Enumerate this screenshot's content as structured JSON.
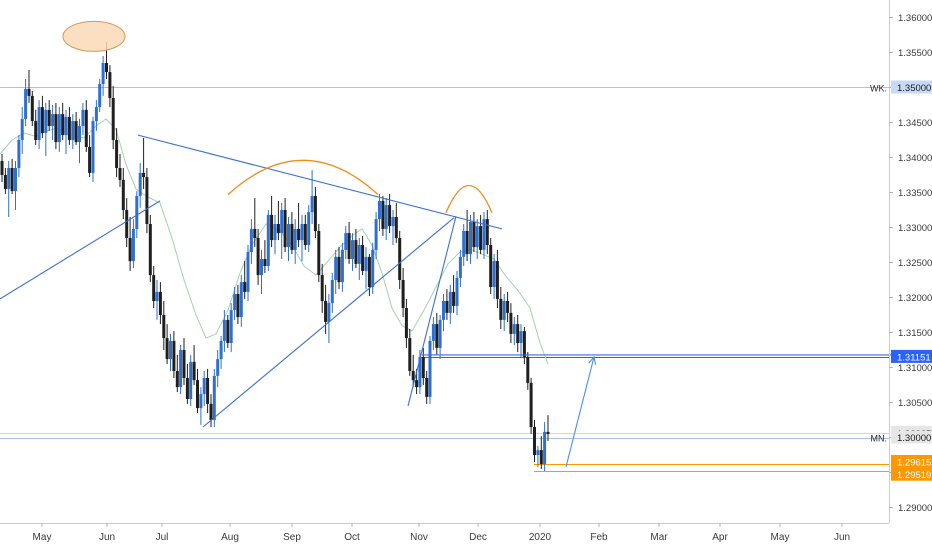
{
  "chart_data": {
    "type": "candlestick",
    "title": "",
    "xlabel": "",
    "ylabel": "",
    "ylim": [
      1.2875,
      1.3625
    ],
    "grid": false,
    "x_tick_labels": [
      "May",
      "Jun",
      "Jul",
      "Aug",
      "Sep",
      "Oct",
      "Nov",
      "Dec",
      "2020",
      "Feb",
      "Mar",
      "Apr",
      "May",
      "Jun"
    ],
    "y_tick_labels": [
      "1.36000",
      "1.35500",
      "1.35000",
      "1.34500",
      "1.34000",
      "1.33500",
      "1.33000",
      "1.32500",
      "1.32000",
      "1.31500",
      "1.31000",
      "1.30500",
      "1.30000",
      "1.29500",
      "1.29000"
    ],
    "price_badges": [
      {
        "label": "1.35000",
        "value": 1.35,
        "color": "#c6daf6",
        "text_color": "#1a1a1a"
      },
      {
        "label": "1.31151",
        "value": 1.31151,
        "color": "#2962ff",
        "text_color": "#ffffff"
      },
      {
        "label": "1.30065",
        "value": 1.30065,
        "color": "#e6e6e6",
        "text_color": "#1a1a1a"
      },
      {
        "label": "1.30000",
        "value": 1.3,
        "color": "#e6e6e6",
        "text_color": "#1a1a1a"
      },
      {
        "label": "1.29615",
        "value": 1.29615,
        "color": "#ff9800",
        "text_color": "#ffffff"
      },
      {
        "label": "1.29519",
        "value": 1.29519,
        "color": "#ff9800",
        "text_color": "#ffffff"
      }
    ],
    "annotations": [
      {
        "text": "WK.",
        "value": 1.35
      },
      {
        "text": "MN.",
        "value": 1.3
      }
    ],
    "horizontal_levels": [
      {
        "value": 1.35,
        "color": "#a9c4eb"
      },
      {
        "value": 1.31151,
        "color": "#2f6bd6"
      },
      {
        "value": 1.30065,
        "color": "#c8d8ec"
      },
      {
        "value": 1.3,
        "color": "#a9c4eb"
      },
      {
        "value": 1.29615,
        "color": "#ff9800"
      },
      {
        "value": 1.29519,
        "color": "#ff9800"
      }
    ],
    "moving_average": [
      [
        0,
        1.3405
      ],
      [
        12,
        1.3425
      ],
      [
        24,
        1.3435
      ],
      [
        36,
        1.343
      ],
      [
        46,
        1.3438
      ],
      [
        58,
        1.3442
      ],
      [
        70,
        1.3432
      ],
      [
        84,
        1.3428
      ],
      [
        96,
        1.3445
      ],
      [
        106,
        1.3455
      ],
      [
        116,
        1.344
      ],
      [
        126,
        1.339
      ],
      [
        136,
        1.3355
      ],
      [
        146,
        1.3345
      ],
      [
        160,
        1.3335
      ],
      [
        172,
        1.3285
      ],
      [
        184,
        1.3225
      ],
      [
        196,
        1.3175
      ],
      [
        206,
        1.3142
      ],
      [
        216,
        1.3148
      ],
      [
        228,
        1.3182
      ],
      [
        240,
        1.3235
      ],
      [
        252,
        1.3275
      ],
      [
        266,
        1.3305
      ],
      [
        280,
        1.3295
      ],
      [
        292,
        1.3275
      ],
      [
        304,
        1.3245
      ],
      [
        316,
        1.3232
      ],
      [
        328,
        1.3252
      ],
      [
        340,
        1.3272
      ],
      [
        352,
        1.3288
      ],
      [
        362,
        1.3298
      ],
      [
        372,
        1.3275
      ],
      [
        382,
        1.3235
      ],
      [
        392,
        1.3185
      ],
      [
        402,
        1.316
      ],
      [
        412,
        1.3152
      ],
      [
        424,
        1.3182
      ],
      [
        436,
        1.3215
      ],
      [
        448,
        1.3248
      ],
      [
        460,
        1.3265
      ],
      [
        472,
        1.3268
      ],
      [
        482,
        1.3262
      ],
      [
        494,
        1.3255
      ],
      [
        506,
        1.323
      ],
      [
        518,
        1.321
      ],
      [
        530,
        1.3185
      ],
      [
        540,
        1.3135
      ],
      [
        548,
        1.3105
      ]
    ],
    "trend_lines": [
      {
        "x1": 138,
        "y1": 1.3432,
        "x2": 502,
        "y2": 1.3298,
        "color": "#3c6fd8"
      },
      {
        "x1": 0,
        "y1": 1.3198,
        "x2": 160,
        "y2": 1.3338,
        "color": "#3c6fd8"
      },
      {
        "x1": 203,
        "y1": 1.3015,
        "x2": 454,
        "y2": 1.3314,
        "color": "#3c6fd8"
      },
      {
        "x1": 408,
        "y1": 1.3045,
        "x2": 456,
        "y2": 1.3316,
        "color": "#3c6fd8"
      },
      {
        "x1": 422,
        "y1": 1.3118,
        "x2": 932,
        "y2": 1.3118,
        "color": "#3c6fd8"
      }
    ],
    "arrow": {
      "x1": 566,
      "y1": 1.2958,
      "x2": 594,
      "y2": 1.3115,
      "color": "#4a90e2"
    },
    "arcs": [
      {
        "x1": 228,
        "x2": 378,
        "y_base": 1.3347,
        "y_peak": 1.3396,
        "color": "#f08c1a"
      },
      {
        "x1": 446,
        "x2": 492,
        "y_base": 1.3321,
        "y_peak": 1.336,
        "color": "#f08c1a"
      }
    ],
    "ellipse": {
      "cx": 94,
      "cy": 1.3573,
      "rx": 31,
      "ry": 15,
      "fill": "#fad9b6",
      "stroke": "#d19a5a"
    },
    "bars": [
      [
        1.3395,
        1.3405,
        1.3365,
        1.3375
      ],
      [
        1.3375,
        1.3385,
        1.3348,
        1.3355
      ],
      [
        1.3355,
        1.3395,
        1.3315,
        1.3385
      ],
      [
        1.3385,
        1.3398,
        1.3348,
        1.3352
      ],
      [
        1.3352,
        1.3395,
        1.3325,
        1.3385
      ],
      [
        1.3385,
        1.3432,
        1.3372,
        1.3425
      ],
      [
        1.3425,
        1.3472,
        1.3405,
        1.3455
      ],
      [
        1.3455,
        1.3512,
        1.3445,
        1.3498
      ],
      [
        1.3498,
        1.3525,
        1.3478,
        1.3488
      ],
      [
        1.3488,
        1.3495,
        1.3445,
        1.3452
      ],
      [
        1.3452,
        1.3468,
        1.3418,
        1.3425
      ],
      [
        1.3425,
        1.3482,
        1.3412,
        1.3472
      ],
      [
        1.3472,
        1.3488,
        1.3428,
        1.3435
      ],
      [
        1.3435,
        1.3478,
        1.3402,
        1.3468
      ],
      [
        1.3468,
        1.3482,
        1.3438,
        1.3445
      ],
      [
        1.3445,
        1.3475,
        1.3425,
        1.3462
      ],
      [
        1.3462,
        1.3478,
        1.3412,
        1.3422
      ],
      [
        1.3422,
        1.3472,
        1.3408,
        1.3462
      ],
      [
        1.3462,
        1.3478,
        1.3425,
        1.3432
      ],
      [
        1.3432,
        1.3468,
        1.3405,
        1.3458
      ],
      [
        1.3458,
        1.3472,
        1.3418,
        1.3425
      ],
      [
        1.3425,
        1.3462,
        1.3412,
        1.3452
      ],
      [
        1.3452,
        1.3465,
        1.3418,
        1.3422
      ],
      [
        1.3422,
        1.3455,
        1.3392,
        1.3445
      ],
      [
        1.3445,
        1.3478,
        1.3432,
        1.3468
      ],
      [
        1.3468,
        1.3482,
        1.3408,
        1.3415
      ],
      [
        1.3415,
        1.3432,
        1.3372,
        1.3378
      ],
      [
        1.3378,
        1.3458,
        1.3365,
        1.3452
      ],
      [
        1.3452,
        1.3482,
        1.3438,
        1.3472
      ],
      [
        1.3472,
        1.3512,
        1.3465,
        1.3505
      ],
      [
        1.3505,
        1.3545,
        1.3488,
        1.3535
      ],
      [
        1.3535,
        1.3565,
        1.3512,
        1.3522
      ],
      [
        1.3522,
        1.3532,
        1.3472,
        1.3485
      ],
      [
        1.3485,
        1.3502,
        1.3412,
        1.3425
      ],
      [
        1.3425,
        1.3442,
        1.3372,
        1.3385
      ],
      [
        1.3385,
        1.3405,
        1.3358,
        1.3368
      ],
      [
        1.3368,
        1.3385,
        1.3312,
        1.3325
      ],
      [
        1.3325,
        1.3342,
        1.3272,
        1.3285
      ],
      [
        1.3285,
        1.3315,
        1.3238,
        1.3252
      ],
      [
        1.3252,
        1.3312,
        1.3242,
        1.3298
      ],
      [
        1.3298,
        1.3352,
        1.3285,
        1.3345
      ],
      [
        1.3345,
        1.3392,
        1.3328,
        1.3378
      ],
      [
        1.3378,
        1.3428,
        1.3355,
        1.3372
      ],
      [
        1.3372,
        1.3385,
        1.3292,
        1.3305
      ],
      [
        1.3305,
        1.3318,
        1.3222,
        1.3232
      ],
      [
        1.3232,
        1.3245,
        1.3185,
        1.3195
      ],
      [
        1.3195,
        1.3225,
        1.3168,
        1.3208
      ],
      [
        1.3208,
        1.3222,
        1.3162,
        1.3175
      ],
      [
        1.3175,
        1.3195,
        1.3125,
        1.3142
      ],
      [
        1.3142,
        1.3162,
        1.3105,
        1.3112
      ],
      [
        1.3112,
        1.3148,
        1.3095,
        1.3138
      ],
      [
        1.3138,
        1.3152,
        1.3085,
        1.3095
      ],
      [
        1.3095,
        1.3118,
        1.3065,
        1.3072
      ],
      [
        1.3072,
        1.3132,
        1.3062,
        1.3125
      ],
      [
        1.3125,
        1.3142,
        1.3075,
        1.3085
      ],
      [
        1.3085,
        1.3105,
        1.3048,
        1.3055
      ],
      [
        1.3055,
        1.3118,
        1.3045,
        1.3108
      ],
      [
        1.3108,
        1.3132,
        1.3075,
        1.3082
      ],
      [
        1.3082,
        1.3098,
        1.3035,
        1.3042
      ],
      [
        1.3042,
        1.3072,
        1.3018,
        1.3062
      ],
      [
        1.3062,
        1.3095,
        1.3045,
        1.3085
      ],
      [
        1.3085,
        1.3098,
        1.3035,
        1.3048
      ],
      [
        1.3048,
        1.3062,
        1.3015,
        1.3025
      ],
      [
        1.3025,
        1.3098,
        1.3015,
        1.3088
      ],
      [
        1.3088,
        1.3125,
        1.3072,
        1.3112
      ],
      [
        1.3112,
        1.3145,
        1.3098,
        1.3138
      ],
      [
        1.3138,
        1.3182,
        1.3122,
        1.3168
      ],
      [
        1.3168,
        1.3175,
        1.3128,
        1.3135
      ],
      [
        1.3135,
        1.3192,
        1.3122,
        1.3182
      ],
      [
        1.3182,
        1.3215,
        1.3168,
        1.3205
      ],
      [
        1.3205,
        1.3218,
        1.3162,
        1.3172
      ],
      [
        1.3172,
        1.3232,
        1.3158,
        1.3222
      ],
      [
        1.3222,
        1.3252,
        1.3198,
        1.3208
      ],
      [
        1.3208,
        1.3275,
        1.3195,
        1.3265
      ],
      [
        1.3265,
        1.3312,
        1.3248,
        1.3298
      ],
      [
        1.3298,
        1.3342,
        1.3272,
        1.3285
      ],
      [
        1.3285,
        1.3298,
        1.3218,
        1.3232
      ],
      [
        1.3232,
        1.3268,
        1.3205,
        1.3255
      ],
      [
        1.3255,
        1.3282,
        1.3235,
        1.3245
      ],
      [
        1.3245,
        1.3325,
        1.3238,
        1.3318
      ],
      [
        1.3318,
        1.3345,
        1.3272,
        1.3282
      ],
      [
        1.3282,
        1.3318,
        1.3262,
        1.3305
      ],
      [
        1.3305,
        1.3338,
        1.3282,
        1.3292
      ],
      [
        1.3292,
        1.3335,
        1.3255,
        1.3325
      ],
      [
        1.3325,
        1.3342,
        1.3265,
        1.3272
      ],
      [
        1.3272,
        1.3315,
        1.3252,
        1.3305
      ],
      [
        1.3305,
        1.3322,
        1.3262,
        1.3268
      ],
      [
        1.3268,
        1.3312,
        1.3248,
        1.3298
      ],
      [
        1.3298,
        1.3335,
        1.3272,
        1.3282
      ],
      [
        1.3282,
        1.3318,
        1.3252,
        1.3305
      ],
      [
        1.3305,
        1.3318,
        1.3268,
        1.3275
      ],
      [
        1.3275,
        1.3332,
        1.3265,
        1.3322
      ],
      [
        1.3322,
        1.3382,
        1.3305,
        1.3345
      ],
      [
        1.3345,
        1.3358,
        1.3285,
        1.3295
      ],
      [
        1.3295,
        1.3305,
        1.3222,
        1.3232
      ],
      [
        1.3232,
        1.3248,
        1.3178,
        1.3195
      ],
      [
        1.3195,
        1.3218,
        1.3148,
        1.3165
      ],
      [
        1.3165,
        1.3205,
        1.3135,
        1.3192
      ],
      [
        1.3192,
        1.3235,
        1.3178,
        1.3225
      ],
      [
        1.3225,
        1.3268,
        1.3205,
        1.3258
      ],
      [
        1.3258,
        1.3272,
        1.3212,
        1.3222
      ],
      [
        1.3222,
        1.3278,
        1.3208,
        1.3268
      ],
      [
        1.3268,
        1.3302,
        1.3255,
        1.3292
      ],
      [
        1.3292,
        1.3308,
        1.3248,
        1.3255
      ],
      [
        1.3255,
        1.3292,
        1.3238,
        1.3282
      ],
      [
        1.3282,
        1.3298,
        1.3242,
        1.3248
      ],
      [
        1.3248,
        1.3285,
        1.3225,
        1.3275
      ],
      [
        1.3275,
        1.3288,
        1.3232,
        1.3238
      ],
      [
        1.3238,
        1.3272,
        1.3212,
        1.3258
      ],
      [
        1.3258,
        1.3262,
        1.3202,
        1.3215
      ],
      [
        1.3215,
        1.3278,
        1.3205,
        1.3268
      ],
      [
        1.3268,
        1.3322,
        1.3255,
        1.3312
      ],
      [
        1.3312,
        1.3348,
        1.3295,
        1.3338
      ],
      [
        1.3338,
        1.3345,
        1.3288,
        1.3298
      ],
      [
        1.3298,
        1.3342,
        1.3282,
        1.3332
      ],
      [
        1.3332,
        1.3348,
        1.3292,
        1.3302
      ],
      [
        1.3302,
        1.3325,
        1.3275,
        1.3315
      ],
      [
        1.3315,
        1.3335,
        1.3278,
        1.3285
      ],
      [
        1.3285,
        1.3295,
        1.3212,
        1.3225
      ],
      [
        1.3225,
        1.3242,
        1.3172,
        1.3185
      ],
      [
        1.3185,
        1.3198,
        1.3128,
        1.3142
      ],
      [
        1.3142,
        1.3155,
        1.3088,
        1.3095
      ],
      [
        1.3095,
        1.3118,
        1.3072,
        1.3082
      ],
      [
        1.3082,
        1.3098,
        1.3062,
        1.3072
      ],
      [
        1.3072,
        1.3125,
        1.3062,
        1.3115
      ],
      [
        1.3115,
        1.3128,
        1.3075,
        1.3085
      ],
      [
        1.3085,
        1.3095,
        1.3048,
        1.3058
      ],
      [
        1.3058,
        1.3145,
        1.3048,
        1.3138
      ],
      [
        1.3138,
        1.3172,
        1.3125,
        1.3162
      ],
      [
        1.3162,
        1.3178,
        1.3118,
        1.3128
      ],
      [
        1.3128,
        1.3175,
        1.3112,
        1.3168
      ],
      [
        1.3168,
        1.3205,
        1.3152,
        1.3195
      ],
      [
        1.3195,
        1.3212,
        1.3168,
        1.3178
      ],
      [
        1.3178,
        1.3218,
        1.3162,
        1.3208
      ],
      [
        1.3208,
        1.3232,
        1.3178,
        1.3188
      ],
      [
        1.3188,
        1.3238,
        1.3175,
        1.3228
      ],
      [
        1.3228,
        1.3268,
        1.3215,
        1.3258
      ],
      [
        1.3258,
        1.3305,
        1.3245,
        1.3295
      ],
      [
        1.3295,
        1.3325,
        1.3252,
        1.3262
      ],
      [
        1.3262,
        1.3318,
        1.3248,
        1.3308
      ],
      [
        1.3308,
        1.3322,
        1.3265,
        1.3272
      ],
      [
        1.3272,
        1.3312,
        1.3255,
        1.3302
      ],
      [
        1.3302,
        1.3318,
        1.3262,
        1.3268
      ],
      [
        1.3268,
        1.3322,
        1.3255,
        1.3312
      ],
      [
        1.3312,
        1.3325,
        1.3262,
        1.3275
      ],
      [
        1.3275,
        1.3285,
        1.3205,
        1.3215
      ],
      [
        1.3215,
        1.3262,
        1.3198,
        1.3252
      ],
      [
        1.3252,
        1.3268,
        1.3185,
        1.3198
      ],
      [
        1.3198,
        1.3215,
        1.3155,
        1.3168
      ],
      [
        1.3168,
        1.3205,
        1.3152,
        1.3195
      ],
      [
        1.3195,
        1.3208,
        1.3165,
        1.3178
      ],
      [
        1.3178,
        1.3192,
        1.3135,
        1.3148
      ],
      [
        1.3148,
        1.3172,
        1.3132,
        1.3162
      ],
      [
        1.3162,
        1.3175,
        1.3122,
        1.3135
      ],
      [
        1.3135,
        1.3162,
        1.3115,
        1.3152
      ],
      [
        1.3152,
        1.3158,
        1.3105,
        1.3115
      ],
      [
        1.3115,
        1.3122,
        1.3068,
        1.3078
      ],
      [
        1.3078,
        1.3085,
        1.3005,
        1.3015
      ],
      [
        1.3015,
        1.3025,
        1.2965,
        1.2975
      ],
      [
        1.2975,
        1.2988,
        1.2958,
        1.2982
      ],
      [
        1.2982,
        1.3002,
        1.2955,
        1.2962
      ],
      [
        1.2962,
        1.3022,
        1.2952,
        1.3008
      ],
      [
        1.3008,
        1.3032,
        1.2995,
        1.3005
      ]
    ]
  }
}
